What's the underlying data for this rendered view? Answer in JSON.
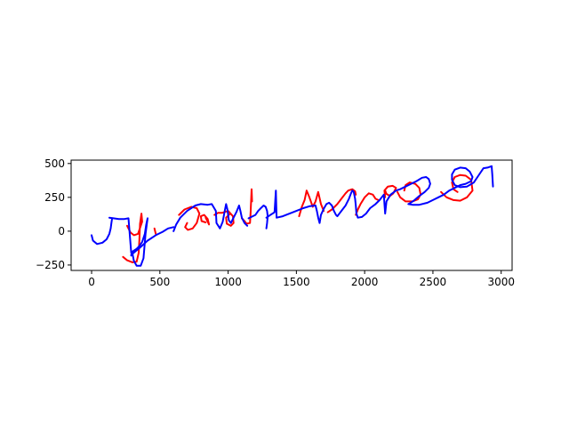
{
  "chart_data": {
    "type": "line",
    "title": "",
    "xlabel": "",
    "ylabel": "",
    "xlim": [
      -150,
      3080
    ],
    "ylim": [
      -290,
      525
    ],
    "xticks": [
      0,
      500,
      1000,
      1500,
      2000,
      2500,
      3000
    ],
    "yticks": [
      -250,
      0,
      250,
      500
    ],
    "grid": false,
    "legend": "none",
    "colors": {
      "series_a": "#ff0000",
      "series_b": "#0000ff"
    },
    "series": [
      {
        "color": "#ff0000",
        "strokes": [
          [
            [
              230,
              -190
            ],
            [
              260,
              -215
            ],
            [
              300,
              -230
            ],
            [
              330,
              -225
            ],
            [
              345,
              -160
            ],
            [
              350,
              -60
            ],
            [
              355,
              55
            ],
            [
              365,
              130
            ],
            [
              370,
              70
            ],
            [
              340,
              -20
            ],
            [
              310,
              -30
            ],
            [
              285,
              -10
            ],
            [
              260,
              40
            ]
          ],
          [
            [
              460,
              20
            ],
            [
              470,
              -20
            ]
          ],
          [
            [
              640,
              120
            ],
            [
              680,
              160
            ],
            [
              730,
              180
            ],
            [
              770,
              170
            ],
            [
              790,
              130
            ],
            [
              770,
              60
            ],
            [
              740,
              20
            ],
            [
              705,
              10
            ],
            [
              685,
              30
            ],
            [
              700,
              60
            ]
          ],
          [
            [
              835,
              100
            ],
            [
              855,
              60
            ],
            [
              860,
              50
            ],
            [
              850,
              90
            ],
            [
              825,
              120
            ],
            [
              800,
              110
            ],
            [
              805,
              75
            ],
            [
              835,
              65
            ]
          ],
          [
            [
              900,
              120
            ],
            [
              925,
              135
            ],
            [
              955,
              135
            ],
            [
              1000,
              150
            ],
            [
              1035,
              110
            ],
            [
              1040,
              60
            ],
            [
              1020,
              40
            ],
            [
              990,
              55
            ],
            [
              985,
              100
            ],
            [
              1015,
              130
            ]
          ],
          [
            [
              1100,
              95
            ],
            [
              1120,
              75
            ],
            [
              1135,
              55
            ],
            [
              1160,
              60
            ],
            [
              1165,
              140
            ],
            [
              1172,
              310
            ],
            [
              1175,
              220
            ]
          ],
          [
            [
              1520,
              110
            ],
            [
              1540,
              180
            ],
            [
              1560,
              230
            ],
            [
              1575,
              300
            ],
            [
              1595,
              250
            ],
            [
              1620,
              180
            ],
            [
              1640,
              220
            ],
            [
              1660,
              290
            ],
            [
              1680,
              200
            ],
            [
              1700,
              150
            ]
          ],
          [
            [
              1730,
              140
            ],
            [
              1760,
              160
            ],
            [
              1800,
              200
            ],
            [
              1830,
              240
            ],
            [
              1860,
              280
            ],
            [
              1880,
              300
            ],
            [
              1910,
              310
            ],
            [
              1930,
              295
            ],
            [
              1935,
              270
            ]
          ],
          [
            [
              1935,
              120
            ],
            [
              1950,
              160
            ],
            [
              1970,
              200
            ],
            [
              2000,
              250
            ],
            [
              2030,
              280
            ],
            [
              2060,
              270
            ],
            [
              2080,
              240
            ],
            [
              2100,
              230
            ]
          ],
          [
            [
              2150,
              250
            ],
            [
              2145,
              300
            ],
            [
              2170,
              330
            ],
            [
              2205,
              335
            ],
            [
              2230,
              320
            ],
            [
              2210,
              280
            ],
            [
              2185,
              260
            ],
            [
              2160,
              275
            ],
            [
              2150,
              300
            ]
          ],
          [
            [
              2240,
              290
            ],
            [
              2260,
              250
            ],
            [
              2300,
              220
            ],
            [
              2350,
              220
            ],
            [
              2390,
              235
            ],
            [
              2410,
              270
            ],
            [
              2400,
              320
            ],
            [
              2370,
              350
            ],
            [
              2330,
              360
            ],
            [
              2300,
              340
            ],
            [
              2290,
              300
            ]
          ],
          [
            [
              2560,
              290
            ],
            [
              2600,
              250
            ],
            [
              2650,
              230
            ],
            [
              2700,
              225
            ],
            [
              2750,
              250
            ],
            [
              2790,
              300
            ],
            [
              2780,
              380
            ],
            [
              2740,
              410
            ],
            [
              2700,
              415
            ],
            [
              2660,
              400
            ],
            [
              2640,
              360
            ],
            [
              2650,
              310
            ],
            [
              2680,
              290
            ]
          ]
        ]
      },
      {
        "color": "#0000ff",
        "strokes": [
          [
            [
              0,
              -30
            ],
            [
              10,
              -70
            ],
            [
              40,
              -95
            ],
            [
              80,
              -85
            ],
            [
              110,
              -60
            ],
            [
              130,
              -20
            ],
            [
              140,
              20
            ],
            [
              145,
              60
            ],
            [
              150,
              95
            ]
          ],
          [
            [
              130,
              100
            ],
            [
              160,
              95
            ],
            [
              200,
              90
            ],
            [
              240,
              90
            ],
            [
              270,
              95
            ],
            [
              290,
              -160
            ]
          ],
          [
            [
              290,
              -180
            ],
            [
              295,
              -160
            ],
            [
              300,
              -150
            ],
            [
              330,
              -130
            ],
            [
              350,
              -110
            ],
            [
              370,
              -80
            ],
            [
              390,
              -20
            ],
            [
              400,
              50
            ],
            [
              410,
              95
            ],
            [
              395,
              -20
            ],
            [
              380,
              -200
            ],
            [
              360,
              -255
            ],
            [
              330,
              -255
            ],
            [
              310,
              -220
            ],
            [
              300,
              -170
            ]
          ],
          [
            [
              290,
              -175
            ],
            [
              350,
              -125
            ],
            [
              410,
              -70
            ],
            [
              470,
              -30
            ],
            [
              520,
              -5
            ],
            [
              560,
              20
            ],
            [
              600,
              30
            ]
          ],
          [
            [
              600,
              0
            ],
            [
              620,
              50
            ],
            [
              650,
              100
            ],
            [
              700,
              150
            ],
            [
              760,
              190
            ],
            [
              800,
              200
            ],
            [
              850,
              195
            ],
            [
              880,
              200
            ],
            [
              910,
              150
            ],
            [
              915,
              60
            ],
            [
              940,
              20
            ],
            [
              960,
              70
            ],
            [
              975,
              150
            ],
            [
              985,
              200
            ],
            [
              995,
              160
            ],
            [
              1005,
              80
            ],
            [
              1020,
              60
            ],
            [
              1040,
              100
            ],
            [
              1060,
              140
            ],
            [
              1080,
              190
            ],
            [
              1090,
              150
            ],
            [
              1100,
              100
            ],
            [
              1120,
              60
            ],
            [
              1140,
              40
            ]
          ],
          [
            [
              1150,
              95
            ],
            [
              1180,
              110
            ],
            [
              1200,
              120
            ],
            [
              1220,
              150
            ],
            [
              1240,
              170
            ],
            [
              1260,
              190
            ],
            [
              1275,
              180
            ],
            [
              1285,
              150
            ],
            [
              1290,
              110
            ],
            [
              1285,
              60
            ],
            [
              1280,
              20
            ]
          ],
          [
            [
              1280,
              100
            ],
            [
              1310,
              120
            ],
            [
              1340,
              140
            ],
            [
              1350,
              300
            ],
            [
              1355,
              100
            ],
            [
              1400,
              110
            ],
            [
              1450,
              130
            ],
            [
              1500,
              150
            ],
            [
              1550,
              170
            ],
            [
              1600,
              185
            ],
            [
              1640,
              190
            ],
            [
              1650,
              150
            ],
            [
              1660,
              100
            ],
            [
              1670,
              60
            ],
            [
              1680,
              120
            ],
            [
              1700,
              165
            ],
            [
              1720,
              200
            ],
            [
              1740,
              210
            ],
            [
              1760,
              190
            ],
            [
              1775,
              150
            ],
            [
              1790,
              120
            ],
            [
              1800,
              110
            ],
            [
              1830,
              150
            ],
            [
              1860,
              190
            ],
            [
              1885,
              240
            ],
            [
              1900,
              280
            ],
            [
              1910,
              300
            ],
            [
              1920,
              290
            ],
            [
              1930,
              240
            ],
            [
              1935,
              190
            ],
            [
              1940,
              130
            ],
            [
              1950,
              100
            ],
            [
              1980,
              105
            ],
            [
              2010,
              130
            ],
            [
              2040,
              170
            ],
            [
              2080,
              200
            ],
            [
              2110,
              230
            ],
            [
              2140,
              270
            ],
            [
              2150,
              130
            ],
            [
              2160,
              220
            ],
            [
              2190,
              270
            ],
            [
              2230,
              300
            ],
            [
              2260,
              310
            ],
            [
              2300,
              330
            ],
            [
              2340,
              350
            ],
            [
              2380,
              370
            ],
            [
              2420,
              395
            ],
            [
              2450,
              400
            ],
            [
              2470,
              385
            ],
            [
              2480,
              350
            ],
            [
              2470,
              320
            ],
            [
              2440,
              290
            ],
            [
              2400,
              260
            ],
            [
              2360,
              225
            ],
            [
              2330,
              205
            ],
            [
              2320,
              200
            ],
            [
              2350,
              195
            ],
            [
              2400,
              195
            ],
            [
              2460,
              210
            ],
            [
              2500,
              230
            ],
            [
              2540,
              250
            ],
            [
              2580,
              270
            ],
            [
              2620,
              300
            ],
            [
              2660,
              320
            ],
            [
              2700,
              340
            ],
            [
              2740,
              350
            ],
            [
              2780,
              370
            ],
            [
              2790,
              400
            ],
            [
              2770,
              440
            ],
            [
              2740,
              465
            ],
            [
              2700,
              470
            ],
            [
              2660,
              455
            ],
            [
              2640,
              420
            ],
            [
              2640,
              380
            ],
            [
              2660,
              340
            ],
            [
              2700,
              325
            ],
            [
              2750,
              330
            ],
            [
              2800,
              360
            ],
            [
              2840,
              420
            ],
            [
              2870,
              465
            ],
            [
              2900,
              470
            ],
            [
              2930,
              480
            ],
            [
              2935,
              420
            ],
            [
              2940,
              330
            ]
          ]
        ]
      }
    ]
  }
}
